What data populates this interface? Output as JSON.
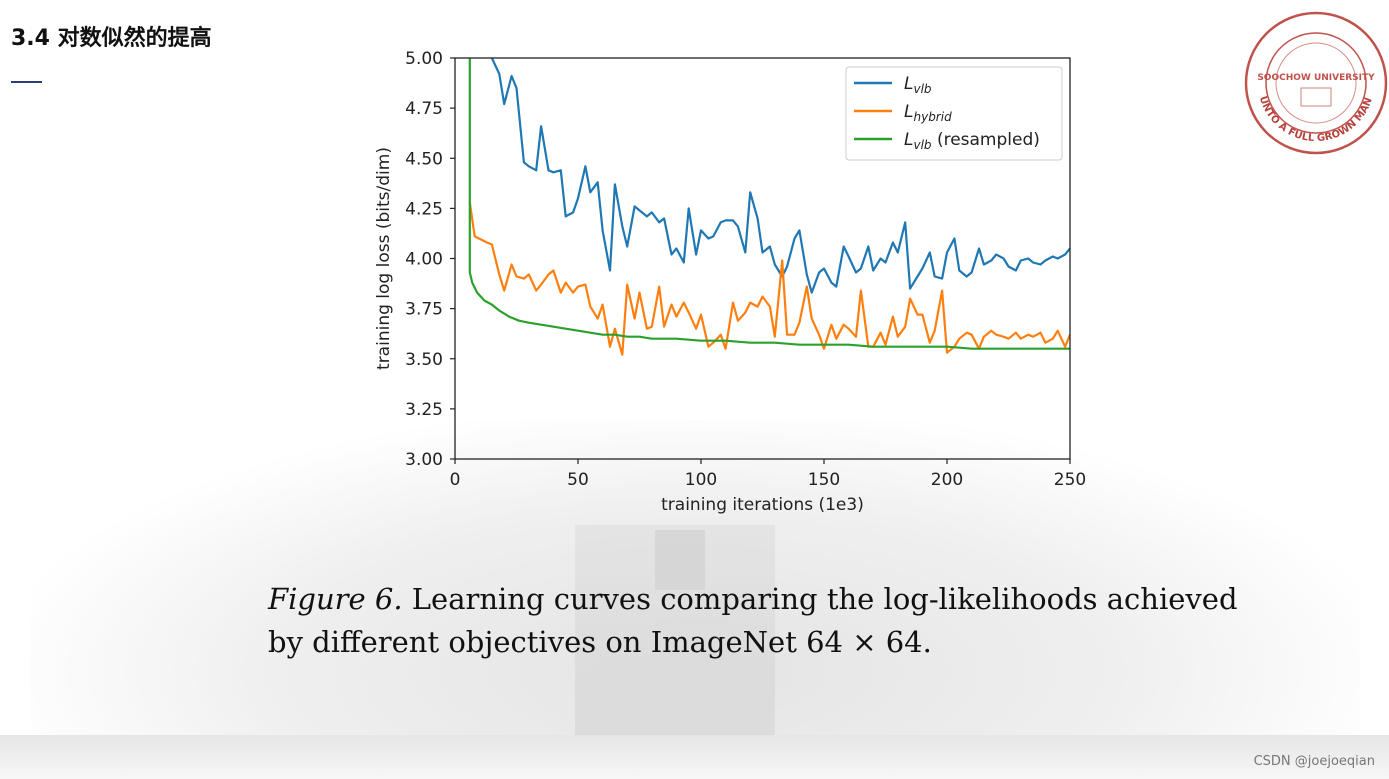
{
  "slide": {
    "title": "3.4 对数似然的提高",
    "watermark": "CSDN @joejoeqian"
  },
  "caption": {
    "figure_label": "Figure 6.",
    "line1_rest": " Learning curves comparing the log-likelihoods achieved",
    "line2": "by different objectives on ImageNet 64 × 64."
  },
  "seal": {
    "colors": {
      "stroke": "#b5423c"
    },
    "outer_text": "UNTO A FULL GROWN MAN",
    "inner_text": "SOOCHOW UNIVERSITY"
  },
  "chart_data": {
    "type": "line",
    "xlabel": "training iterations (1e3)",
    "ylabel": "training log loss (bits/dim)",
    "xlim": [
      0,
      250
    ],
    "ylim": [
      3.0,
      5.0
    ],
    "xticks": [
      0,
      50,
      100,
      150,
      200,
      250
    ],
    "yticks": [
      3.0,
      3.25,
      3.5,
      3.75,
      4.0,
      4.25,
      4.5,
      4.75,
      5.0
    ],
    "legend_position": "top-right",
    "grid": false,
    "series": [
      {
        "name": "L_vlb",
        "label_main": "L",
        "label_sub": "vlb",
        "label_suffix": "",
        "color": "#1f77b4",
        "x": [
          15,
          18,
          20,
          23,
          25,
          28,
          30,
          33,
          35,
          38,
          40,
          43,
          45,
          48,
          50,
          53,
          55,
          58,
          60,
          63,
          65,
          68,
          70,
          73,
          75,
          78,
          80,
          83,
          85,
          88,
          90,
          93,
          95,
          98,
          100,
          103,
          105,
          108,
          110,
          113,
          115,
          118,
          120,
          123,
          125,
          128,
          130,
          133,
          135,
          138,
          140,
          143,
          145,
          148,
          150,
          153,
          155,
          158,
          160,
          163,
          165,
          168,
          170,
          173,
          175,
          178,
          180,
          183,
          185,
          188,
          190,
          193,
          195,
          198,
          200,
          203,
          205,
          208,
          210,
          213,
          215,
          218,
          220,
          223,
          225,
          228,
          230,
          233,
          235,
          238,
          240,
          243,
          245,
          248,
          250
        ],
        "y": [
          5.0,
          4.92,
          4.77,
          4.91,
          4.85,
          4.48,
          4.46,
          4.44,
          4.66,
          4.44,
          4.43,
          4.44,
          4.21,
          4.23,
          4.3,
          4.46,
          4.33,
          4.38,
          4.14,
          3.94,
          4.37,
          4.16,
          4.06,
          4.26,
          4.24,
          4.21,
          4.23,
          4.18,
          4.2,
          4.02,
          4.05,
          3.98,
          4.25,
          4.02,
          4.14,
          4.1,
          4.11,
          4.18,
          4.19,
          4.19,
          4.16,
          4.03,
          4.33,
          4.2,
          4.03,
          4.06,
          3.97,
          3.91,
          3.96,
          4.1,
          4.14,
          3.92,
          3.83,
          3.93,
          3.95,
          3.88,
          3.86,
          4.06,
          4.01,
          3.93,
          3.95,
          4.06,
          3.94,
          4.0,
          3.98,
          4.08,
          4.03,
          4.18,
          3.85,
          3.91,
          3.95,
          4.03,
          3.91,
          3.9,
          4.03,
          4.1,
          3.94,
          3.91,
          3.93,
          4.05,
          3.97,
          3.99,
          4.02,
          4.0,
          3.96,
          3.94,
          3.99,
          4.0,
          3.98,
          3.97,
          3.99,
          4.01,
          4.0,
          4.02,
          4.05
        ]
      },
      {
        "name": "L_hybrid",
        "label_main": "L",
        "label_sub": "hybrid",
        "label_suffix": "",
        "color": "#ff7f0e",
        "x": [
          6,
          8,
          13,
          15,
          18,
          20,
          23,
          25,
          28,
          30,
          33,
          35,
          38,
          40,
          43,
          45,
          48,
          50,
          53,
          55,
          58,
          60,
          63,
          65,
          68,
          70,
          73,
          75,
          78,
          80,
          83,
          85,
          88,
          90,
          93,
          95,
          98,
          100,
          103,
          105,
          108,
          110,
          113,
          115,
          118,
          120,
          123,
          125,
          128,
          130,
          133,
          135,
          138,
          140,
          143,
          145,
          148,
          150,
          153,
          155,
          158,
          160,
          163,
          165,
          168,
          170,
          173,
          175,
          178,
          180,
          183,
          185,
          188,
          190,
          193,
          195,
          198,
          200,
          203,
          205,
          208,
          210,
          213,
          215,
          218,
          220,
          223,
          225,
          228,
          230,
          233,
          235,
          238,
          240,
          243,
          245,
          248,
          250
        ],
        "y": [
          4.28,
          4.11,
          4.08,
          4.07,
          3.92,
          3.84,
          3.97,
          3.91,
          3.9,
          3.92,
          3.84,
          3.87,
          3.92,
          3.94,
          3.83,
          3.88,
          3.83,
          3.86,
          3.87,
          3.76,
          3.7,
          3.77,
          3.56,
          3.65,
          3.52,
          3.87,
          3.7,
          3.83,
          3.65,
          3.66,
          3.86,
          3.66,
          3.77,
          3.71,
          3.78,
          3.73,
          3.65,
          3.72,
          3.56,
          3.58,
          3.62,
          3.55,
          3.78,
          3.69,
          3.73,
          3.78,
          3.76,
          3.81,
          3.76,
          3.61,
          3.99,
          3.62,
          3.62,
          3.68,
          3.86,
          3.7,
          3.62,
          3.55,
          3.67,
          3.6,
          3.67,
          3.65,
          3.61,
          3.84,
          3.56,
          3.56,
          3.63,
          3.57,
          3.71,
          3.61,
          3.66,
          3.8,
          3.72,
          3.72,
          3.58,
          3.64,
          3.84,
          3.53,
          3.56,
          3.6,
          3.63,
          3.62,
          3.55,
          3.61,
          3.64,
          3.62,
          3.61,
          3.6,
          3.63,
          3.6,
          3.62,
          3.61,
          3.63,
          3.58,
          3.6,
          3.64,
          3.56,
          3.62
        ]
      },
      {
        "name": "L_vlb (resampled)",
        "label_main": "L",
        "label_sub": "vlb",
        "label_suffix": " (resampled)",
        "color": "#2ca02c",
        "x": [
          6,
          6,
          7,
          9,
          12,
          15,
          18,
          22,
          26,
          30,
          35,
          40,
          45,
          50,
          55,
          60,
          65,
          70,
          75,
          80,
          90,
          100,
          110,
          120,
          130,
          140,
          150,
          160,
          170,
          180,
          190,
          200,
          210,
          220,
          230,
          240,
          250
        ],
        "y": [
          5.0,
          3.93,
          3.88,
          3.83,
          3.79,
          3.77,
          3.74,
          3.71,
          3.69,
          3.68,
          3.67,
          3.66,
          3.65,
          3.64,
          3.63,
          3.62,
          3.62,
          3.61,
          3.61,
          3.6,
          3.6,
          3.59,
          3.59,
          3.58,
          3.58,
          3.57,
          3.57,
          3.57,
          3.56,
          3.56,
          3.56,
          3.56,
          3.55,
          3.55,
          3.55,
          3.55,
          3.55
        ]
      }
    ]
  }
}
